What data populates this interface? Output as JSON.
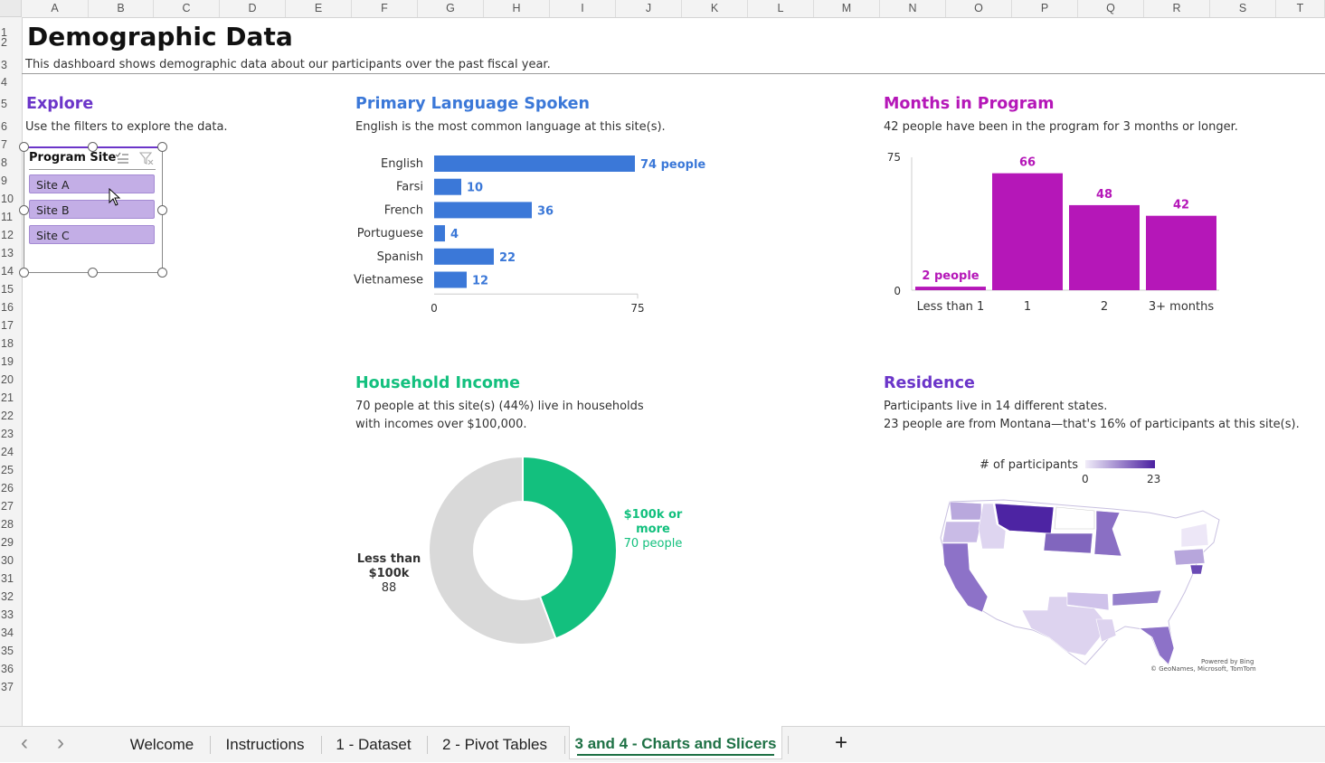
{
  "columns": [
    "A",
    "B",
    "C",
    "D",
    "E",
    "F",
    "G",
    "H",
    "I",
    "J",
    "K",
    "L",
    "M",
    "N",
    "O",
    "P",
    "Q",
    "R",
    "S",
    "T"
  ],
  "rows": [
    "1",
    "2",
    "3",
    "4",
    "5",
    "6",
    "7",
    "8",
    "9",
    "10",
    "11",
    "12",
    "13",
    "14",
    "15",
    "16",
    "17",
    "18",
    "19",
    "20",
    "21",
    "22",
    "23",
    "24",
    "25",
    "26",
    "27",
    "28",
    "29",
    "30",
    "31",
    "32",
    "33",
    "34",
    "35",
    "36",
    "37"
  ],
  "header": {
    "title": "Demographic Data",
    "subtitle": "This dashboard shows demographic data about our participants over the past fiscal year."
  },
  "explore": {
    "title": "Explore",
    "desc": "Use the filters to explore the data.",
    "slicer_title": "Program Site",
    "items": [
      "Site A",
      "Site B",
      "Site C"
    ]
  },
  "colors": {
    "language": "#3b78d8",
    "months": "#b517b8",
    "income": "#13c07e",
    "income_other": "#d9d9d9",
    "explore": "#6b35c9",
    "residence": "#6b35c9"
  },
  "language": {
    "title": "Primary Language Spoken",
    "desc": "English is the most common language at this site(s)."
  },
  "months": {
    "title": "Months in Program",
    "desc": "42 people have been in the program for 3 months or longer."
  },
  "income": {
    "title": "Household Income",
    "desc1": "70 people at this site(s) (44%) live in households",
    "desc2": "with incomes over $100,000."
  },
  "residence": {
    "title": "Residence",
    "desc1": "Participants live in 14 different states.",
    "desc2": "23 people are from Montana—that's 16% of participants at this site(s).",
    "legend_title": "# of participants",
    "legend_min": "0",
    "legend_max": "23",
    "credit1": "Powered by Bing",
    "credit2": "© GeoNames, Microsoft, TomTom"
  },
  "chart_data": [
    {
      "type": "bar",
      "orientation": "horizontal",
      "categories": [
        "English",
        "Farsi",
        "French",
        "Portuguese",
        "Spanish",
        "Vietnamese"
      ],
      "values": [
        74,
        10,
        36,
        4,
        22,
        12
      ],
      "value_labels": [
        "74 people",
        "10",
        "36",
        "4",
        "22",
        "12"
      ],
      "xlim": [
        0,
        75
      ],
      "ticks": [
        "0",
        "75"
      ]
    },
    {
      "type": "bar",
      "categories": [
        "Less than 1",
        "1",
        "2",
        "3+ months"
      ],
      "values": [
        2,
        66,
        48,
        42
      ],
      "value_labels": [
        "2 people",
        "66",
        "48",
        "42"
      ],
      "ylim": [
        0,
        75
      ],
      "ticks": [
        "0",
        "75"
      ]
    },
    {
      "type": "pie",
      "donut": true,
      "slices": [
        {
          "name": "$100k or more",
          "value": 70,
          "label": "70 people"
        },
        {
          "name": "Less than $100k",
          "value": 88,
          "label": "88"
        }
      ]
    }
  ],
  "tabs": {
    "items": [
      "Welcome",
      "Instructions",
      "1 - Dataset",
      "2 - Pivot Tables",
      "3 and 4 - Charts and Slicers"
    ],
    "active": "3 and 4 - Charts and Slicers",
    "add": "+",
    "prev": "‹",
    "next": "›"
  }
}
